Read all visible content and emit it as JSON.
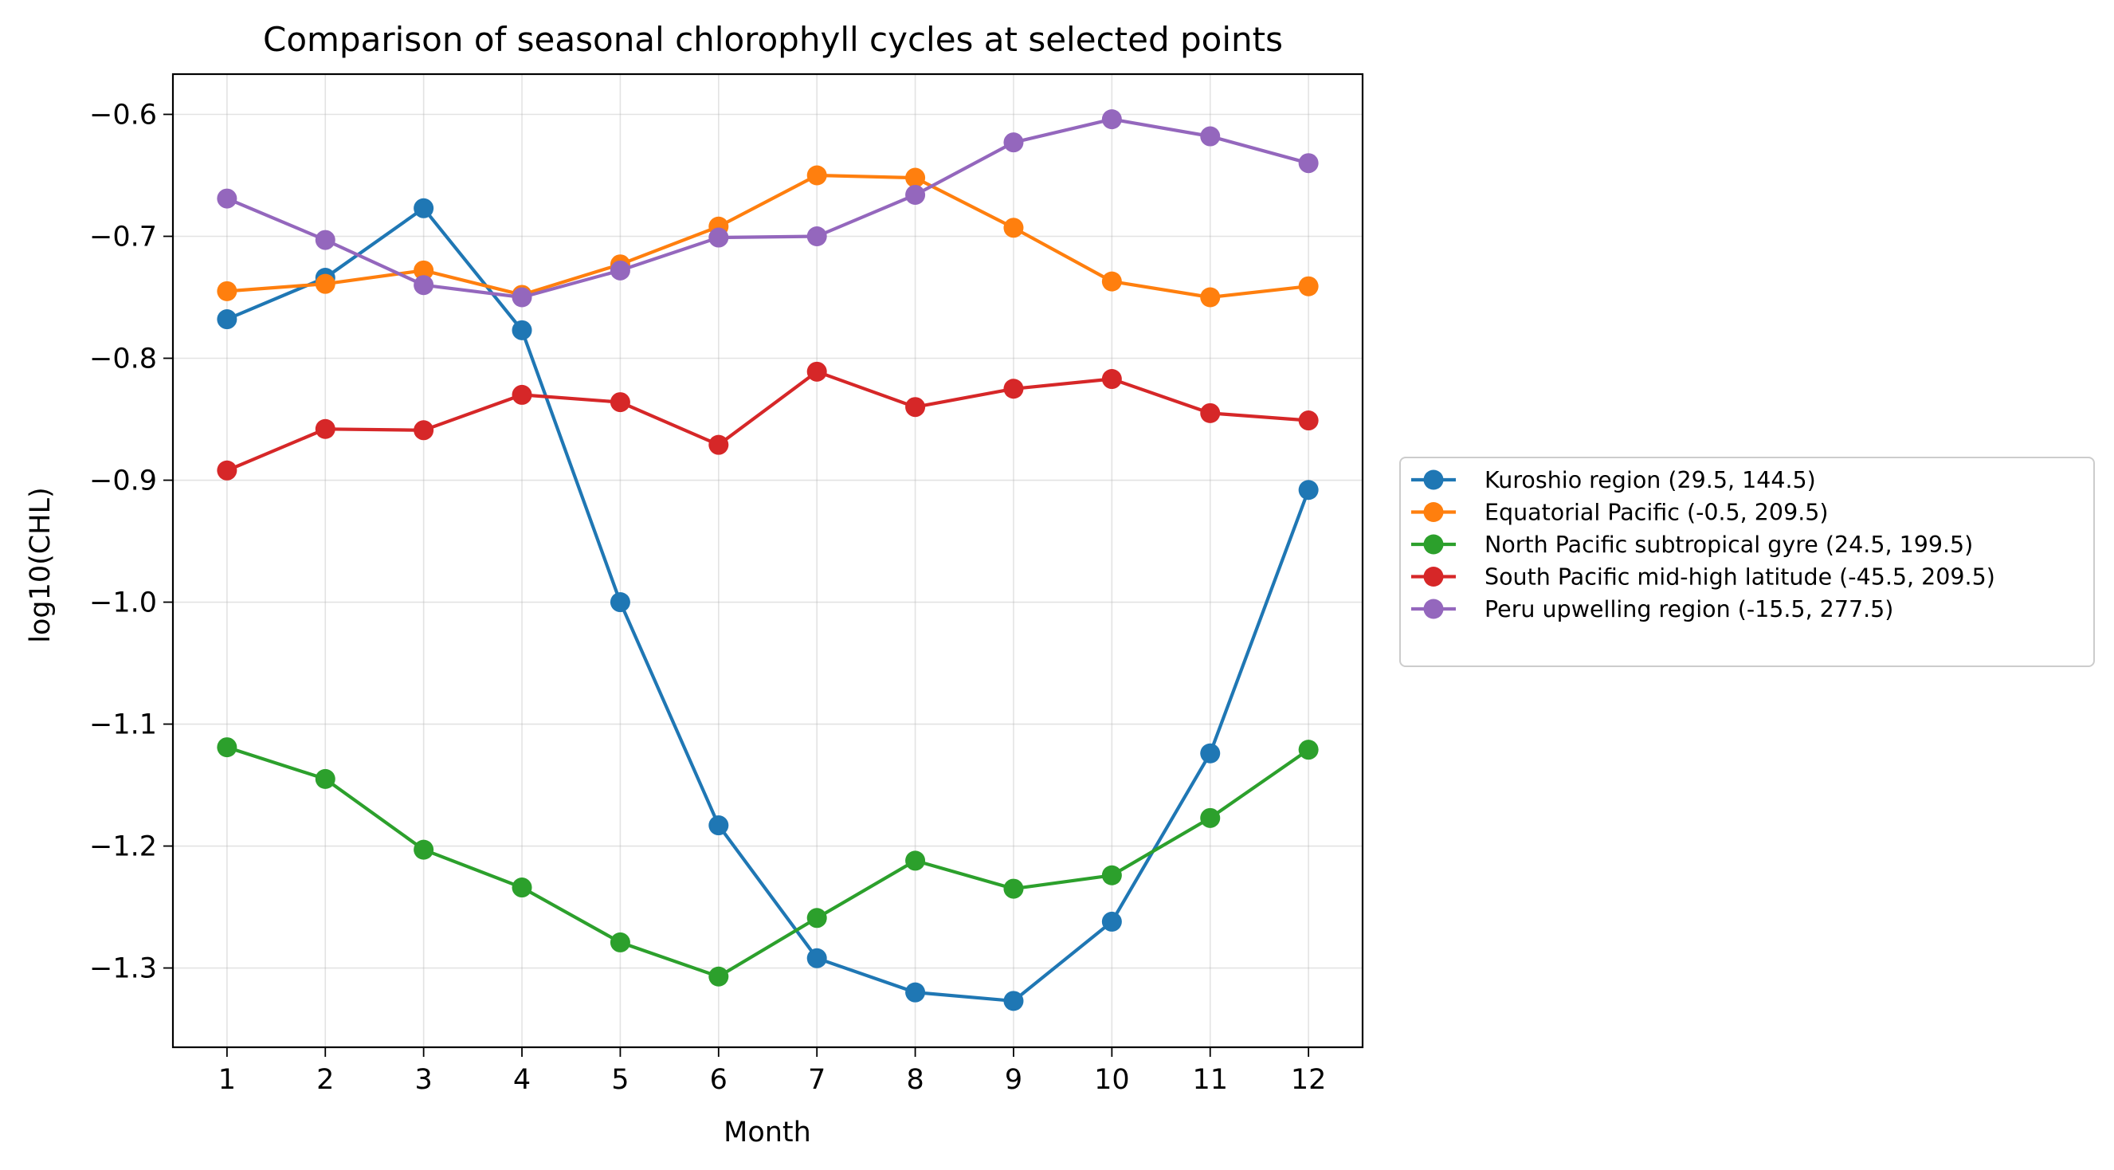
{
  "chart_data": {
    "type": "line",
    "title": "Comparison of seasonal chlorophyll cycles at selected points",
    "xlabel": "Month",
    "ylabel": "log10(CHL)",
    "x": [
      1,
      2,
      3,
      4,
      5,
      6,
      7,
      8,
      9,
      10,
      11,
      12
    ],
    "xlim": [
      0.45,
      12.55
    ],
    "ylim": [
      -1.365,
      -0.567
    ],
    "yticks": [
      -1.3,
      -1.2,
      -1.1,
      -1.0,
      -0.9,
      -0.8,
      -0.7,
      -0.6
    ],
    "ytick_labels": [
      "−1.3",
      "−1.2",
      "−1.1",
      "−1.0",
      "−0.9",
      "−0.8",
      "−0.7",
      "−0.6"
    ],
    "xtick_labels": [
      "1",
      "2",
      "3",
      "4",
      "5",
      "6",
      "7",
      "8",
      "9",
      "10",
      "11",
      "12"
    ],
    "grid": true,
    "legend_position": "outside-right",
    "series": [
      {
        "name": "Kuroshio region (29.5, 144.5)",
        "color": "#1f77b4",
        "values": [
          -0.768,
          -0.734,
          -0.677,
          -0.777,
          -1.0,
          -1.183,
          -1.292,
          -1.32,
          -1.327,
          -1.262,
          -1.124,
          -0.908
        ]
      },
      {
        "name": "Equatorial Pacific (-0.5, 209.5)",
        "color": "#ff7f0e",
        "values": [
          -0.745,
          -0.739,
          -0.728,
          -0.748,
          -0.723,
          -0.692,
          -0.65,
          -0.652,
          -0.693,
          -0.737,
          -0.75,
          -0.741
        ]
      },
      {
        "name": "North Pacific subtropical gyre (24.5, 199.5)",
        "color": "#2ca02c",
        "values": [
          -1.119,
          -1.145,
          -1.203,
          -1.234,
          -1.279,
          -1.307,
          -1.259,
          -1.212,
          -1.235,
          -1.224,
          -1.177,
          -1.121
        ]
      },
      {
        "name": "South Pacific mid-high latitude (-45.5, 209.5)",
        "color": "#d62728",
        "values": [
          -0.892,
          -0.858,
          -0.859,
          -0.83,
          -0.836,
          -0.871,
          -0.811,
          -0.84,
          -0.825,
          -0.817,
          -0.845,
          -0.851
        ]
      },
      {
        "name": "Peru upwelling region (-15.5, 277.5)",
        "color": "#9467bd",
        "values": [
          -0.669,
          -0.703,
          -0.74,
          -0.75,
          -0.728,
          -0.701,
          -0.7,
          -0.666,
          -0.623,
          -0.604,
          -0.618,
          -0.64
        ]
      }
    ]
  }
}
